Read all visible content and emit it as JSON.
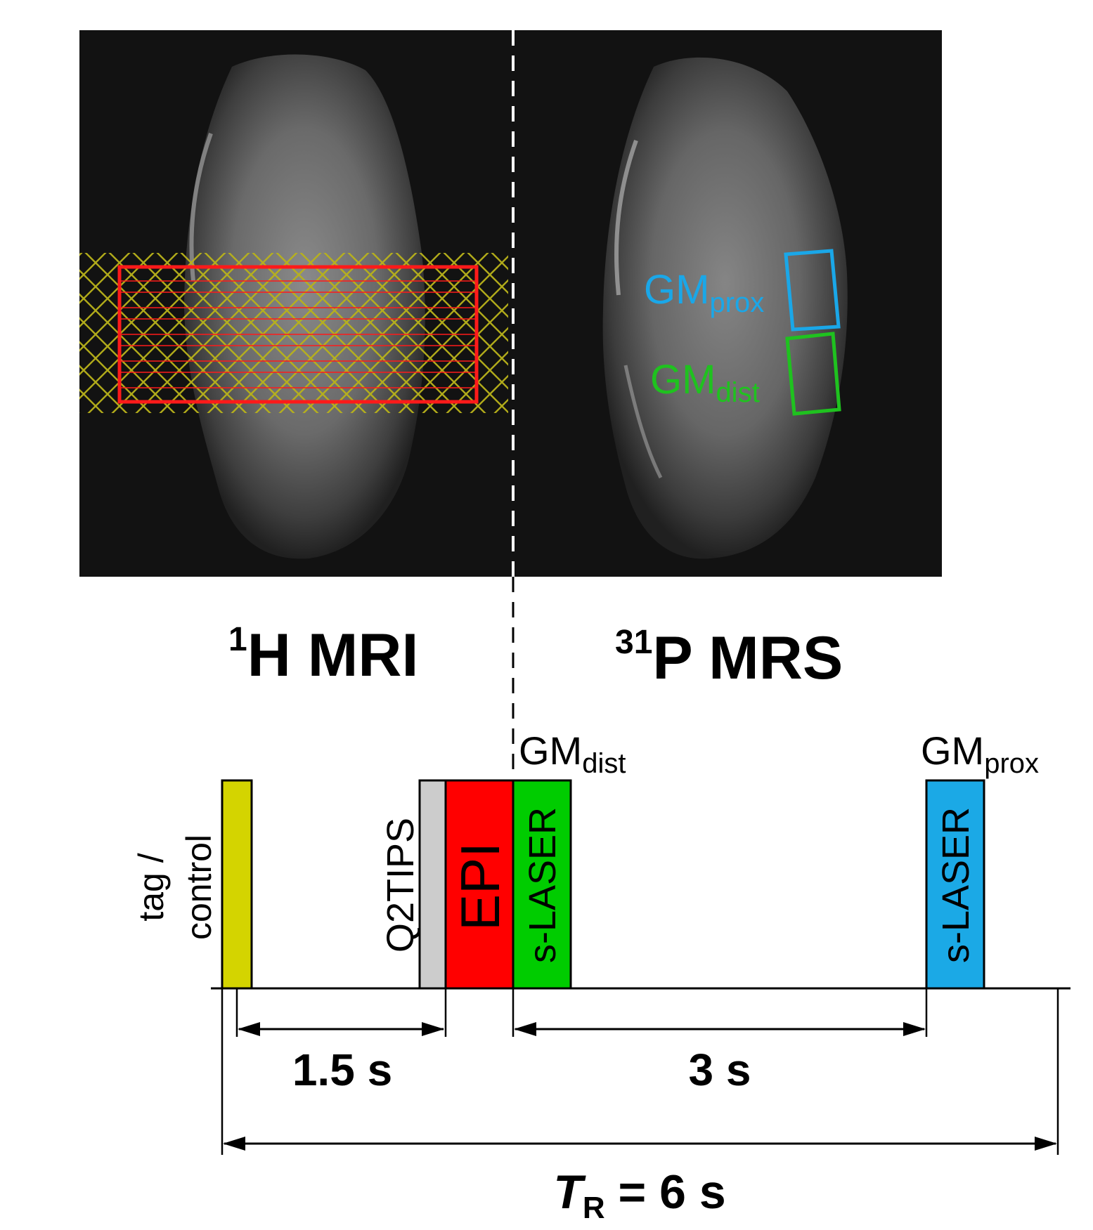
{
  "images": {
    "left_panel": "1H MRI",
    "right_panel": "31P MRS",
    "voi_labels": {
      "prox": {
        "main": "GM",
        "sub": "prox",
        "color": "#1aa7e8"
      },
      "dist": {
        "main": "GM",
        "sub": "dist",
        "color": "#1fc21f"
      }
    },
    "tag_color": "#c8c800",
    "slice_color": "#ff1a1a"
  },
  "headings": {
    "mri": {
      "sup": "1",
      "text": "H MRI"
    },
    "mrs": {
      "sup": "31",
      "text": "P MRS"
    }
  },
  "sequence": {
    "blocks": {
      "tag": {
        "label_line1": "tag /",
        "label_line2": "control",
        "color": "#d4d400"
      },
      "q2tips": {
        "label": "Q2TIPS",
        "color": "#cccccc"
      },
      "epi": {
        "label": "EPI",
        "color": "#ff0000"
      },
      "slaser_dist": {
        "label": "s-LASER",
        "color": "#00cc00"
      },
      "slaser_prox": {
        "label": "s-LASER",
        "color": "#1ba9e6"
      }
    },
    "top_labels": {
      "dist": {
        "main": "GM",
        "sub": "dist"
      },
      "prox": {
        "main": "GM",
        "sub": "prox"
      }
    },
    "timing": {
      "interval_1": "1.5 s",
      "interval_2": "3 s",
      "tr": {
        "symbol": "T",
        "sub": "R",
        "rest": " = 6 s"
      }
    }
  }
}
